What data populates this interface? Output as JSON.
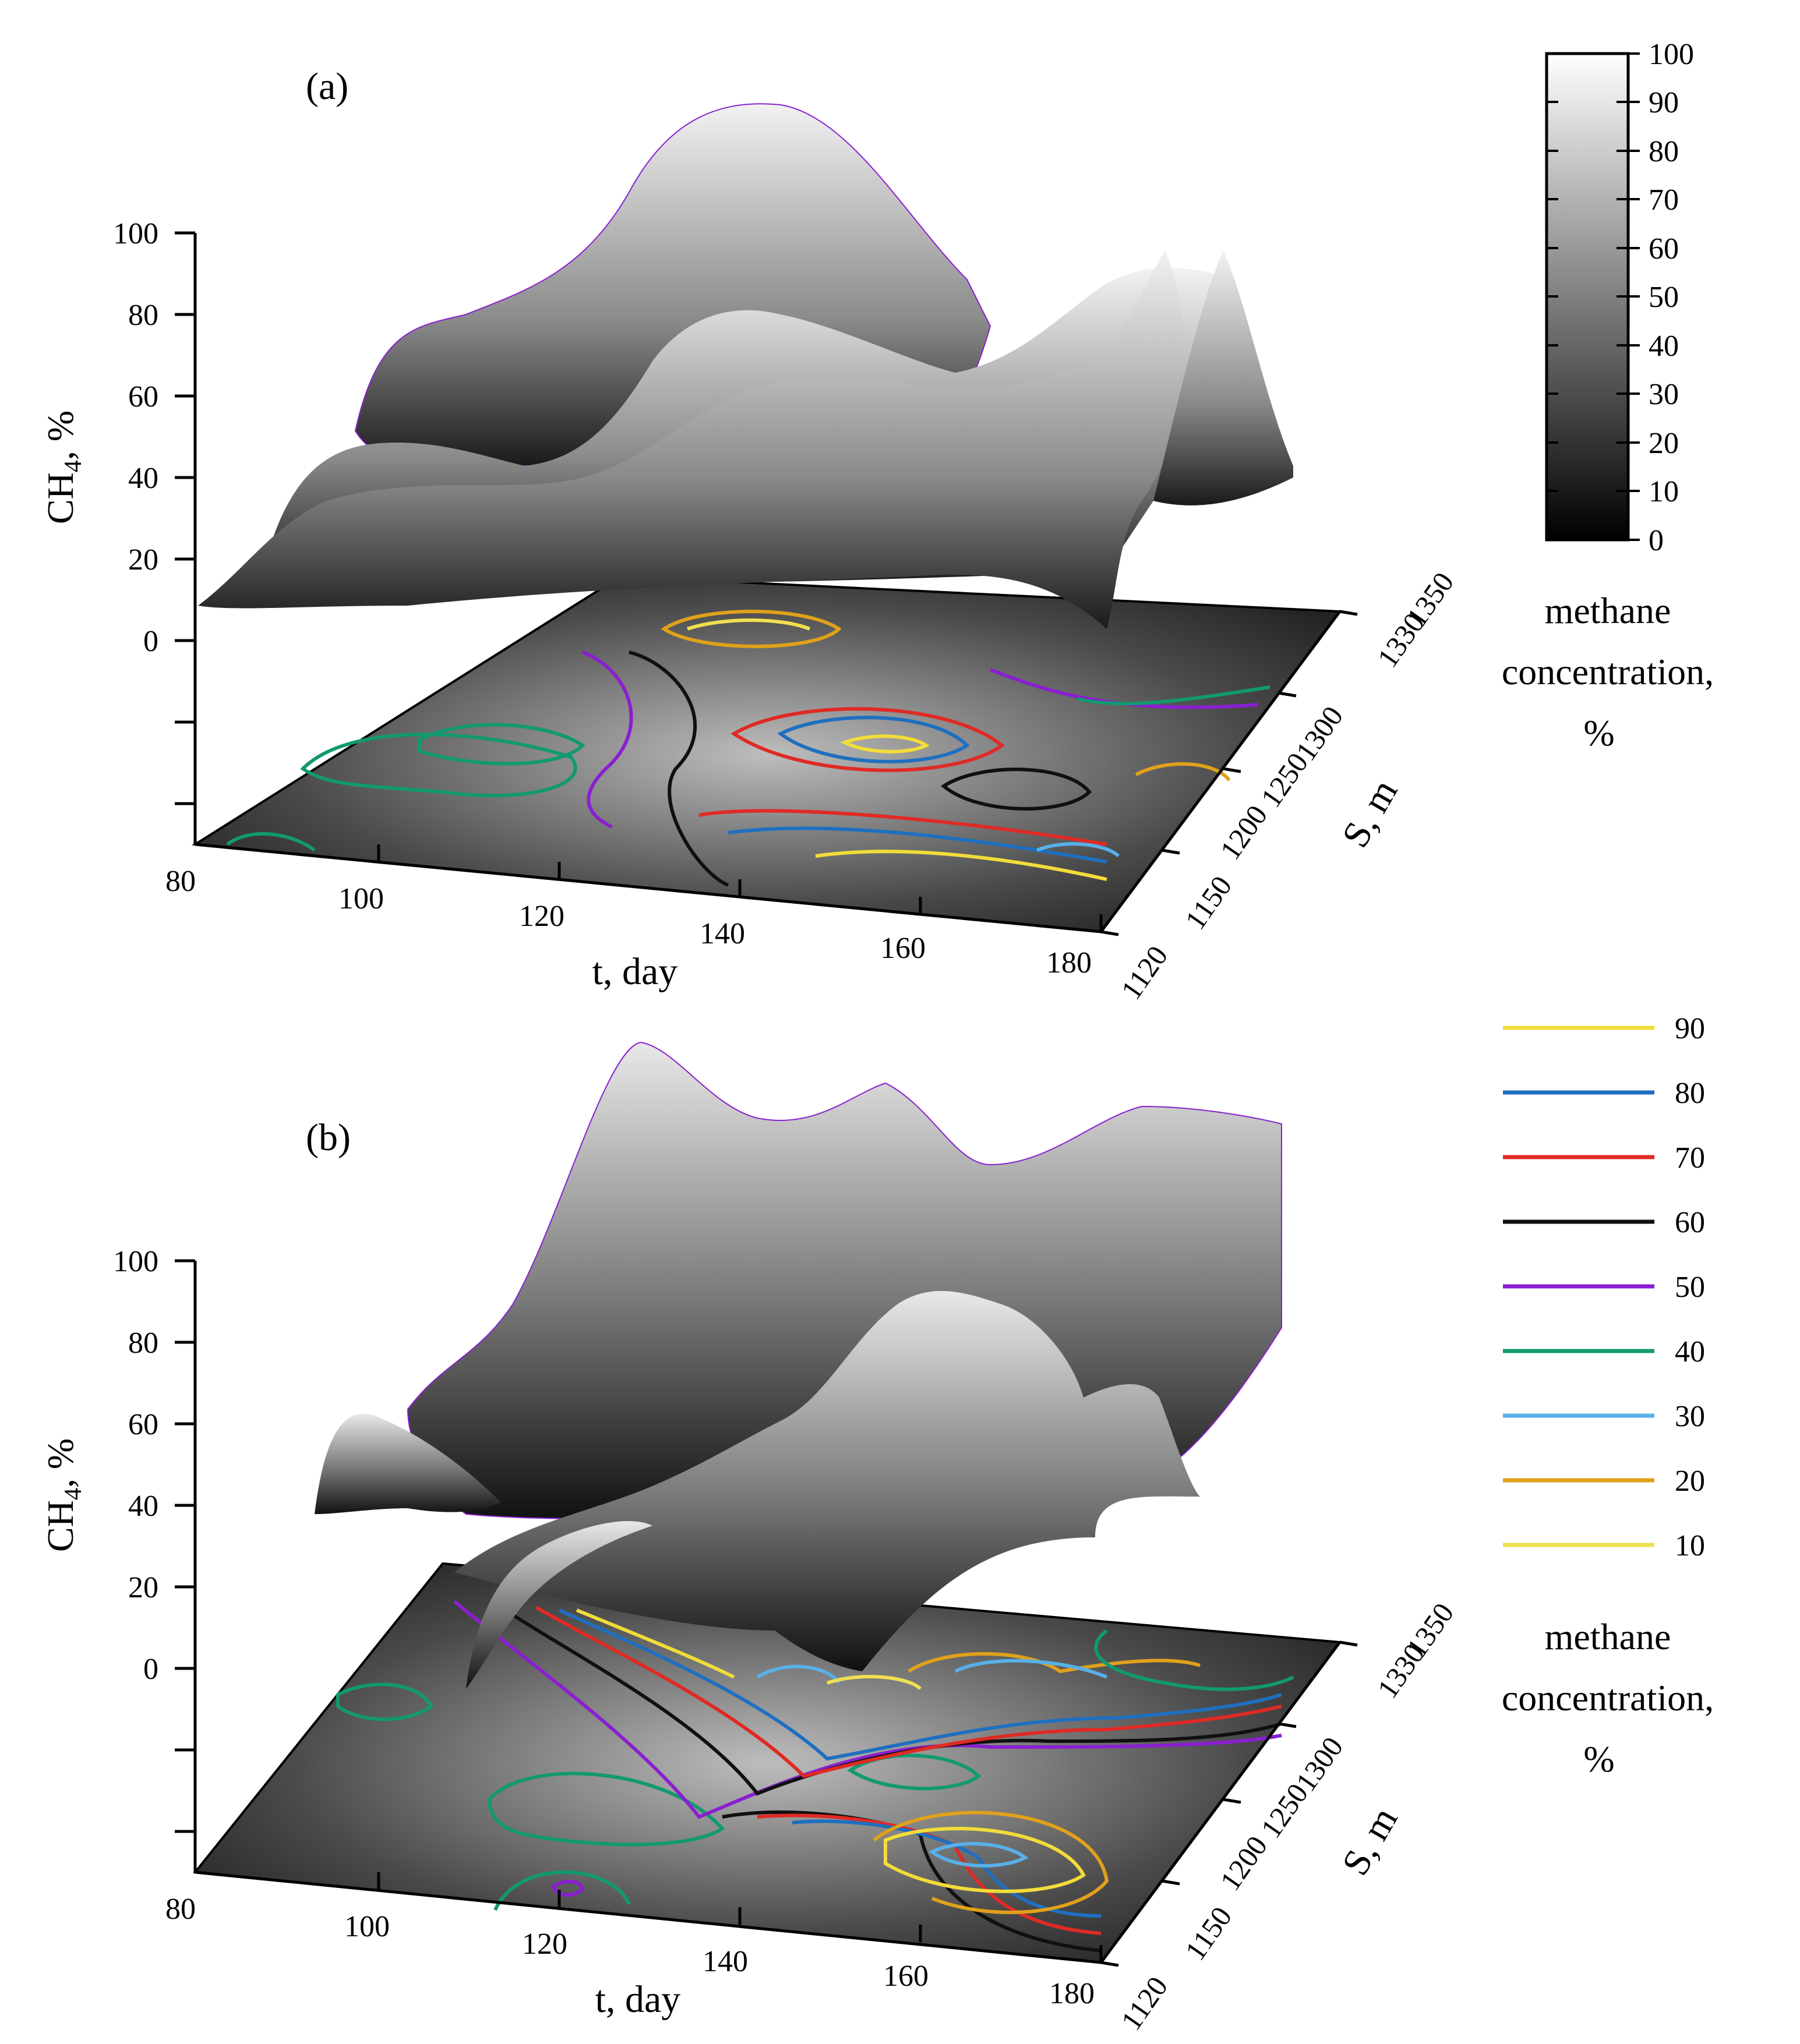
{
  "chart_data": [
    {
      "panel_label": "(a)",
      "type": "3d-surface",
      "zlabel_main": "CH",
      "zlabel_sub": "4",
      "zlabel_tail": ", %",
      "xlabel": "t, day",
      "ylabel": "S, m",
      "zticks": [
        "100",
        "80",
        "60",
        "40",
        "20",
        "0"
      ],
      "xticks": [
        "80",
        "100",
        "120",
        "140",
        "160",
        "180"
      ],
      "yticks": [
        "1120",
        "1150",
        "1200",
        "1250",
        "1300",
        "1330",
        "1350"
      ],
      "zlim": [
        0,
        100
      ],
      "xlim": [
        80,
        180
      ],
      "ylim": [
        1120,
        1350
      ],
      "ridges": [
        {
          "s": 1350,
          "t": [
            80,
            96,
            108,
            120,
            132,
            144,
            156,
            168,
            176
          ],
          "z": [
            62,
            78,
            80,
            88,
            98,
            90,
            70,
            58,
            40
          ]
        },
        {
          "s": 1300,
          "t": [
            80,
            92,
            104,
            120,
            136,
            150,
            162,
            172,
            180
          ],
          "z": [
            42,
            52,
            50,
            50,
            65,
            75,
            88,
            95,
            55
          ]
        },
        {
          "s": 1200,
          "t": [
            80,
            100,
            120,
            140,
            150,
            160,
            168,
            174,
            180
          ],
          "z": [
            15,
            25,
            40,
            55,
            62,
            70,
            80,
            60,
            8
          ]
        }
      ],
      "contour_levels": [
        90,
        80,
        70,
        60,
        50,
        40,
        30,
        20,
        10
      ]
    },
    {
      "panel_label": "(b)",
      "type": "3d-surface",
      "zlabel_main": "CH",
      "zlabel_sub": "4",
      "zlabel_tail": ", %",
      "xlabel": "t, day",
      "ylabel": "S, m",
      "zticks": [
        "100",
        "80",
        "60",
        "40",
        "20",
        "0"
      ],
      "xticks": [
        "80",
        "100",
        "120",
        "140",
        "160",
        "180"
      ],
      "yticks": [
        "1120",
        "1150",
        "1200",
        "1250",
        "1300",
        "1330",
        "1350"
      ],
      "zlim": [
        0,
        100
      ],
      "xlim": [
        80,
        180
      ],
      "ylim": [
        1120,
        1350
      ],
      "ridges": [
        {
          "s": 1350,
          "t": [
            96,
            108,
            120,
            132,
            144,
            156,
            168,
            180
          ],
          "z": [
            70,
            85,
            98,
            92,
            96,
            90,
            94,
            90
          ]
        },
        {
          "s": 1250,
          "t": [
            80,
            92,
            104,
            120,
            136,
            150,
            164,
            180
          ],
          "z": [
            55,
            50,
            40,
            60,
            72,
            80,
            75,
            60
          ]
        },
        {
          "s": 1200,
          "t": [
            110,
            120,
            130,
            140,
            150,
            160,
            170,
            180
          ],
          "z": [
            20,
            30,
            45,
            55,
            65,
            70,
            65,
            50
          ]
        }
      ],
      "contour_levels": [
        90,
        80,
        70,
        60,
        50,
        40,
        30,
        20,
        10
      ]
    }
  ],
  "colorbar": {
    "ticks": [
      "100",
      "90",
      "80",
      "70",
      "60",
      "50",
      "40",
      "30",
      "20",
      "10",
      "0"
    ],
    "title_lines": [
      "methane",
      "concentration,",
      "%"
    ]
  },
  "contour_legend": {
    "entries": [
      {
        "label": "90",
        "color": "#f2dc3a"
      },
      {
        "label": "80",
        "color": "#1f6fbf"
      },
      {
        "label": "70",
        "color": "#e02a24"
      },
      {
        "label": "60",
        "color": "#101010"
      },
      {
        "label": "50",
        "color": "#8a1fd0"
      },
      {
        "label": "40",
        "color": "#129970"
      },
      {
        "label": "30",
        "color": "#58b0e8"
      },
      {
        "label": "20",
        "color": "#e0a11a"
      },
      {
        "label": "10",
        "color": "#f0e050"
      }
    ],
    "title_lines": [
      "methane",
      "concentration,",
      "%"
    ]
  }
}
